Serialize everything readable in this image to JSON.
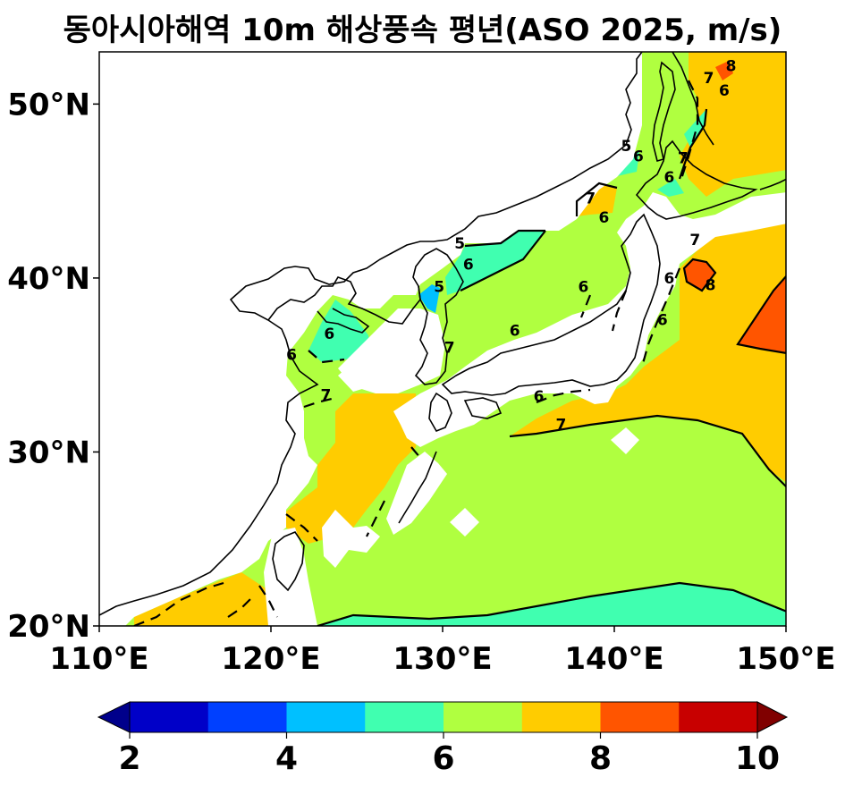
{
  "title": "동아시아해역 10m 해상풍속 평년(ASO 2025, m/s)",
  "map": {
    "lon_range": [
      110,
      150
    ],
    "lat_range": [
      20,
      53
    ],
    "x_ticks": [
      {
        "value": 110,
        "label": "110°E"
      },
      {
        "value": 120,
        "label": "120°E"
      },
      {
        "value": 130,
        "label": "130°E"
      },
      {
        "value": 140,
        "label": "140°E"
      },
      {
        "value": 150,
        "label": "150°E"
      }
    ],
    "y_ticks": [
      {
        "value": 20,
        "label": "20°N"
      },
      {
        "value": 30,
        "label": "30°N"
      },
      {
        "value": 40,
        "label": "40°N"
      },
      {
        "value": 50,
        "label": "50°N"
      }
    ],
    "contour_levels": [
      5,
      6,
      7,
      8
    ],
    "contour_labels": [
      {
        "text": "5",
        "lon": 131.0,
        "lat": 42.0
      },
      {
        "text": "5",
        "lon": 129.8,
        "lat": 39.5
      },
      {
        "text": "6",
        "lon": 131.5,
        "lat": 40.8
      },
      {
        "text": "6",
        "lon": 123.4,
        "lat": 36.8
      },
      {
        "text": "6",
        "lon": 121.2,
        "lat": 35.6
      },
      {
        "text": "6",
        "lon": 134.2,
        "lat": 37.0
      },
      {
        "text": "6",
        "lon": 135.6,
        "lat": 33.2
      },
      {
        "text": "6",
        "lon": 138.2,
        "lat": 39.5
      },
      {
        "text": "6",
        "lon": 139.4,
        "lat": 43.5
      },
      {
        "text": "6",
        "lon": 141.4,
        "lat": 47.0
      },
      {
        "text": "6",
        "lon": 143.2,
        "lat": 45.8
      },
      {
        "text": "6",
        "lon": 146.4,
        "lat": 50.8
      },
      {
        "text": "6",
        "lon": 142.8,
        "lat": 37.6
      },
      {
        "text": "6",
        "lon": 143.2,
        "lat": 40.0
      },
      {
        "text": "5",
        "lon": 140.7,
        "lat": 47.6
      },
      {
        "text": "7",
        "lon": 130.4,
        "lat": 36.0
      },
      {
        "text": "7",
        "lon": 123.2,
        "lat": 33.3
      },
      {
        "text": "7",
        "lon": 136.9,
        "lat": 31.6
      },
      {
        "text": "7",
        "lon": 144.7,
        "lat": 42.2
      },
      {
        "text": "7",
        "lon": 138.6,
        "lat": 44.6
      },
      {
        "text": "7",
        "lon": 145.5,
        "lat": 51.5
      },
      {
        "text": "7",
        "lon": 144.0,
        "lat": 46.9
      },
      {
        "text": "8",
        "lon": 146.8,
        "lat": 52.2
      },
      {
        "text": "8",
        "lon": 145.6,
        "lat": 39.6
      }
    ]
  },
  "colorbar": {
    "colors": [
      "#0000c8",
      "#0040ff",
      "#00c0ff",
      "#40ffb0",
      "#b0ff40",
      "#ffcc00",
      "#ff5500",
      "#c80000"
    ],
    "under_color": "#00008b",
    "over_color": "#800000",
    "tick_labels": [
      "2",
      "4",
      "6",
      "8",
      "10"
    ]
  }
}
